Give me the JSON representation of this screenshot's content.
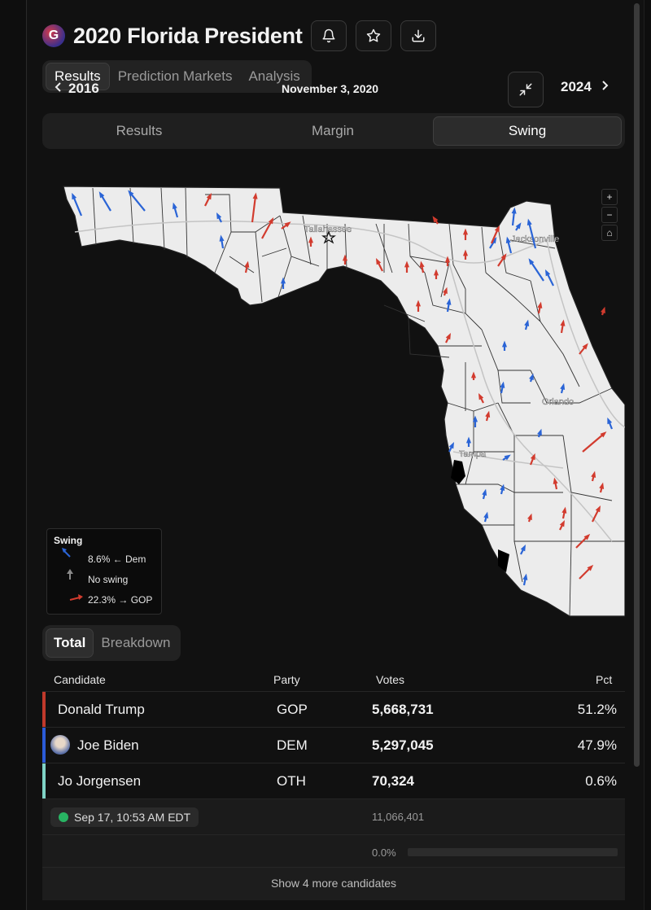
{
  "header": {
    "logo_letter": "G",
    "title": "2020 Florida President",
    "icons": [
      "bell-icon",
      "star-icon",
      "download-icon"
    ]
  },
  "tabs": [
    "Results",
    "Prediction Markets",
    "Analysis"
  ],
  "active_tab": "Results",
  "nav": {
    "prev_year": "2016",
    "date": "November 3, 2020",
    "next_year": "2024",
    "collapse_icon": "collapse-icon"
  },
  "view_modes": [
    "Results",
    "Margin",
    "Swing"
  ],
  "active_view": "Swing",
  "map": {
    "city_labels": [
      "Tallahassee",
      "Jacksonville",
      "Orlando",
      "Tampa"
    ],
    "controls": [
      "+",
      "−",
      "⌂"
    ],
    "colors": {
      "dem": "#2a64d6",
      "gop": "#d23b2e",
      "none": "#8a8a8a",
      "land": "#ececec",
      "water": "#000000"
    }
  },
  "legend": {
    "title": "Swing",
    "dem_label": "8.6% ← Dem",
    "none_label": "No swing",
    "gop_label": "22.3% → GOP"
  },
  "table_tabs": [
    "Total",
    "Breakdown"
  ],
  "active_table_tab": "Total",
  "columns": {
    "candidate": "Candidate",
    "party": "Party",
    "votes": "Votes",
    "pct": "Pct"
  },
  "candidates": [
    {
      "name": "Donald Trump",
      "party": "GOP",
      "votes": "5,668,731",
      "pct": "51.2%",
      "color": "#c0392b",
      "avatar": false
    },
    {
      "name": "Joe Biden",
      "party": "DEM",
      "votes": "5,297,045",
      "pct": "47.9%",
      "color": "#2b5bd7",
      "avatar": true
    },
    {
      "name": "Jo Jorgensen",
      "party": "OTH",
      "votes": "70,324",
      "pct": "0.6%",
      "color": "#7fd3c6",
      "avatar": false
    }
  ],
  "footer": {
    "updated": "Sep 17, 10:53 AM EDT",
    "total_votes": "11,066,401",
    "reporting_pct": "0.0%",
    "reporting_fraction": 0.0,
    "show_more": "Show 4 more candidates"
  }
}
